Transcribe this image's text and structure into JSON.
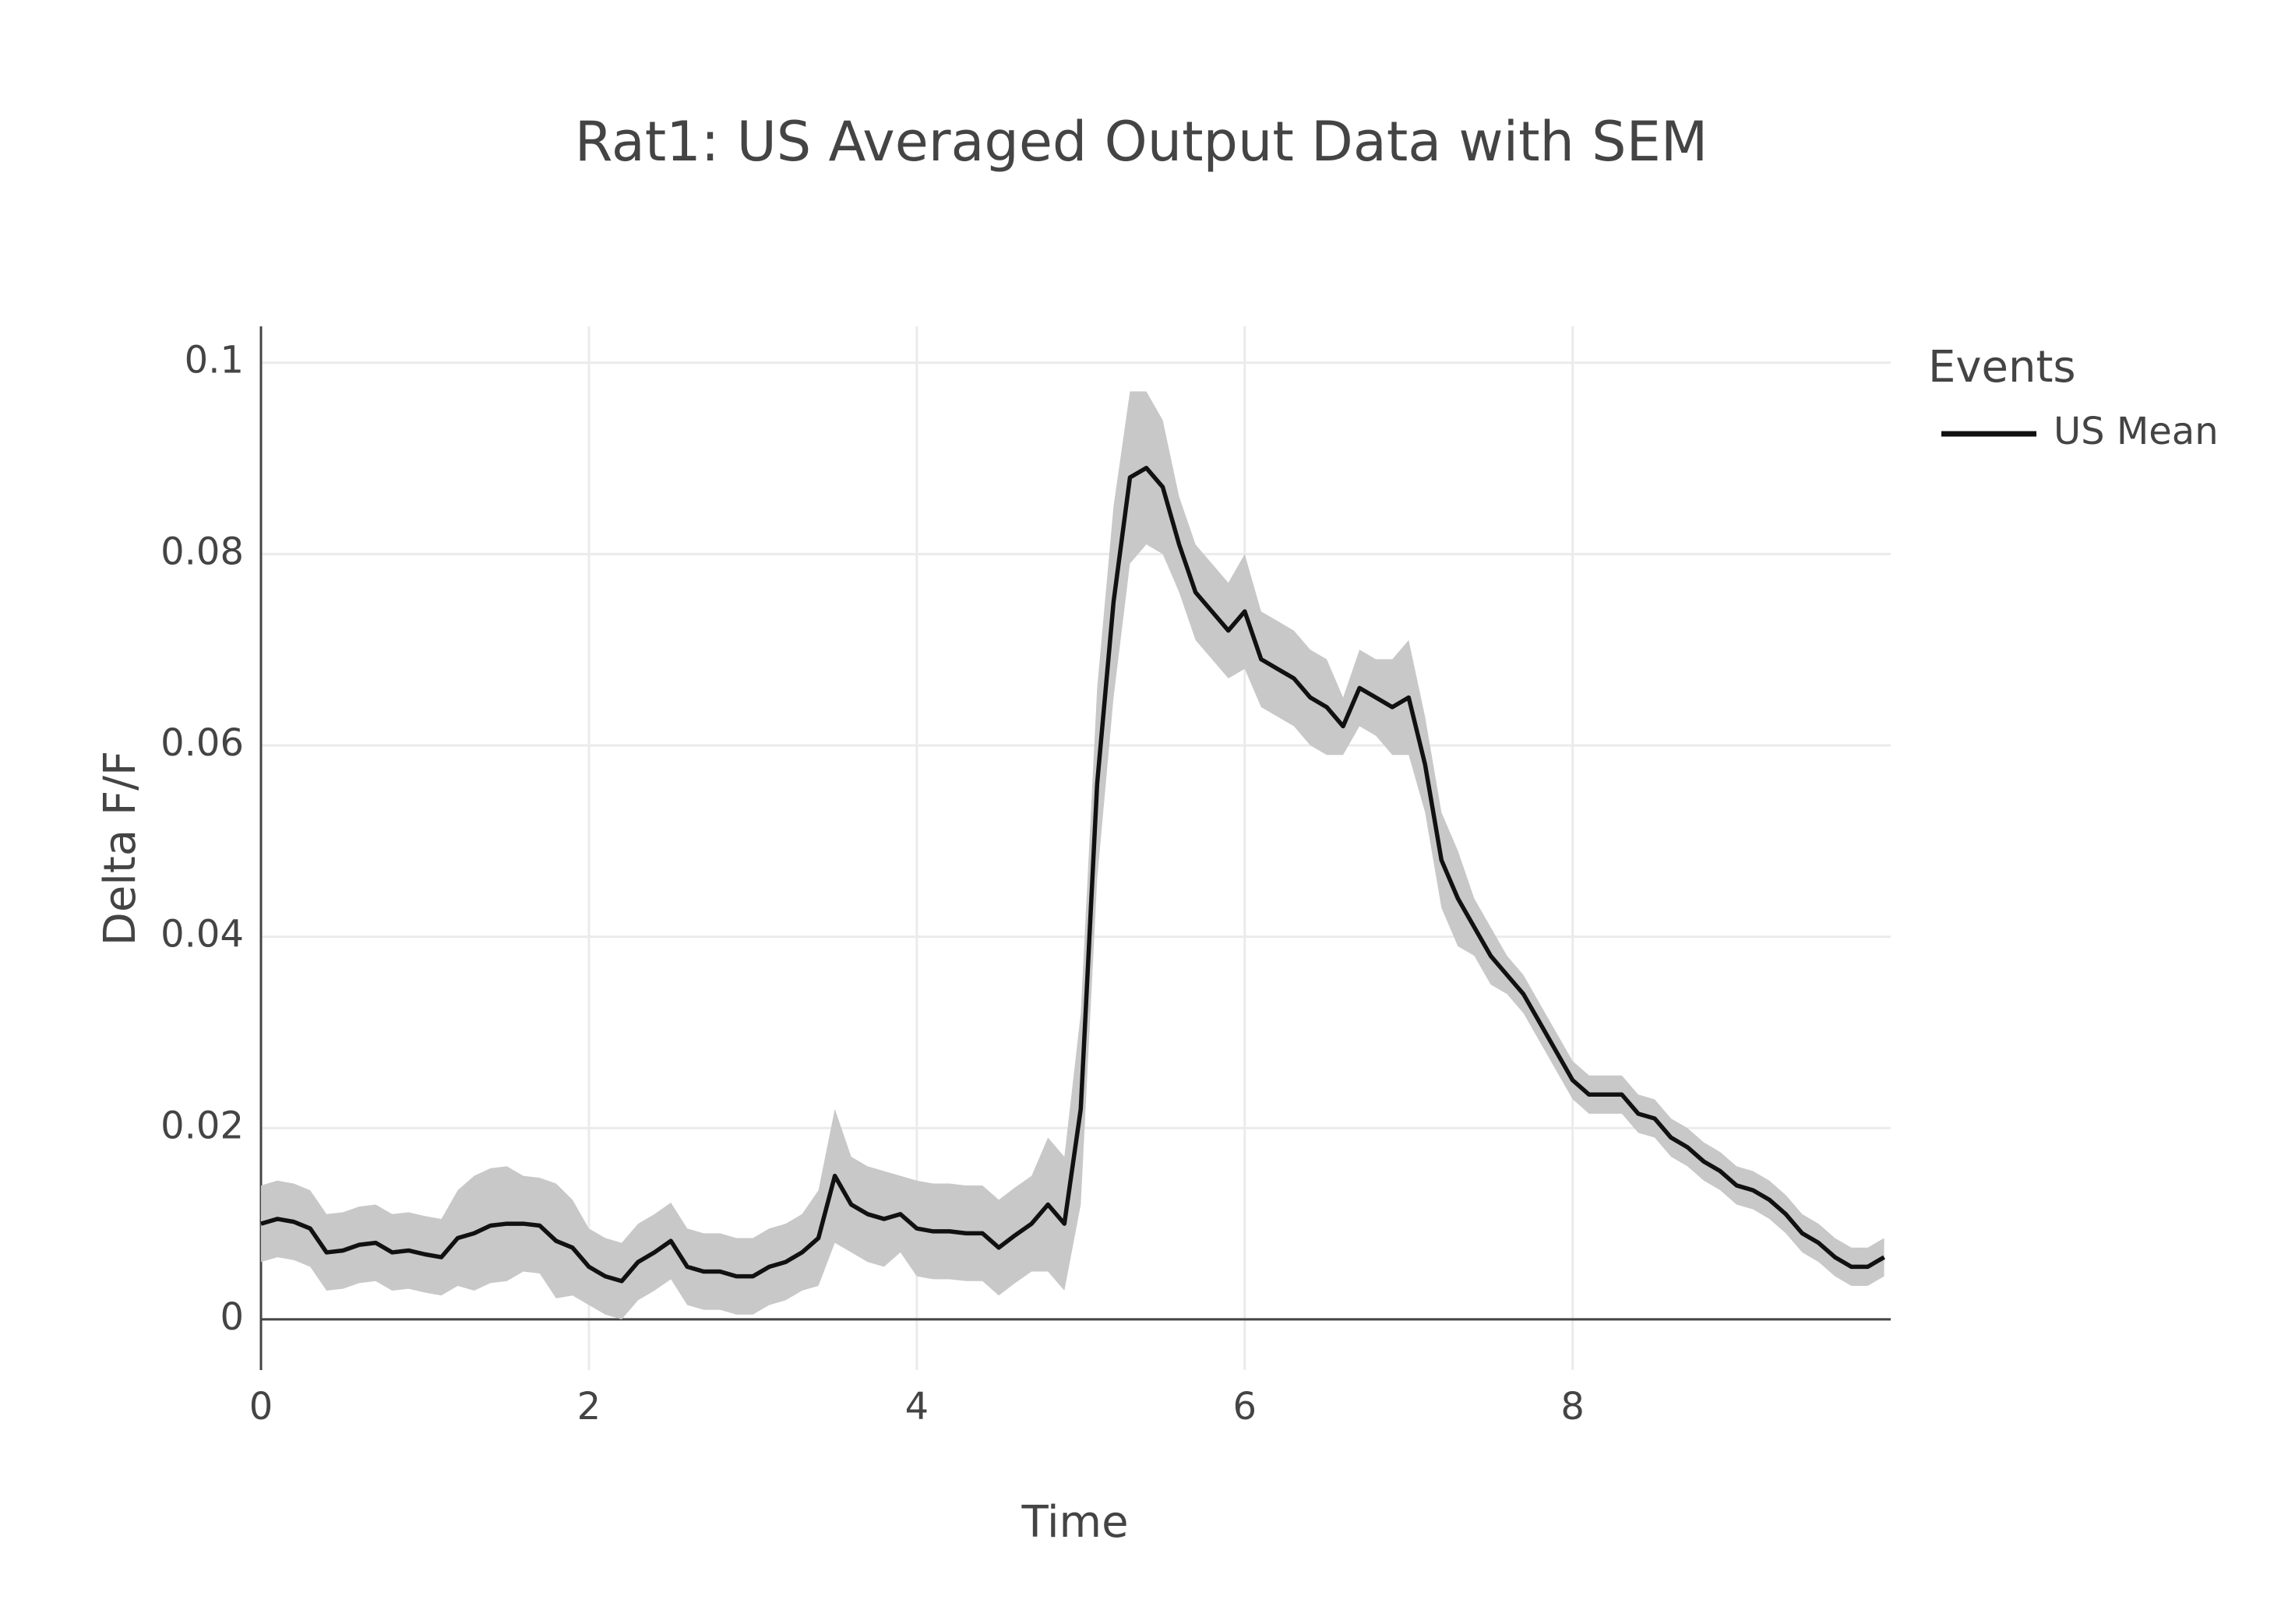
{
  "chart_data": {
    "type": "line",
    "title": "Rat1: US Averaged Output Data with SEM",
    "x_label": "Time",
    "y_label": "Delta F/F",
    "legend_title": "Events",
    "grid": true,
    "x": [
      0,
      0.1,
      0.2,
      0.3,
      0.4,
      0.5,
      0.6,
      0.7,
      0.8,
      0.9,
      1,
      1.1,
      1.2,
      1.3,
      1.4,
      1.5,
      1.6,
      1.7,
      1.8,
      1.9,
      2,
      2.1,
      2.2,
      2.3,
      2.4,
      2.5,
      2.6,
      2.7,
      2.8,
      2.9,
      3,
      3.1,
      3.2,
      3.3,
      3.4,
      3.5,
      3.6,
      3.7,
      3.8,
      3.9,
      4,
      4.1,
      4.2,
      4.3,
      4.4,
      4.5,
      4.6,
      4.7,
      4.8,
      4.9,
      5,
      5.1,
      5.2,
      5.3,
      5.4,
      5.5,
      5.6,
      5.7,
      5.8,
      5.9,
      6,
      6.1,
      6.2,
      6.3,
      6.4,
      6.5,
      6.6,
      6.7,
      6.8,
      6.9,
      7,
      7.1,
      7.2,
      7.3,
      7.4,
      7.5,
      7.6,
      7.7,
      7.8,
      7.9,
      8,
      8.1,
      8.2,
      8.3,
      8.4,
      8.5,
      8.6,
      8.7,
      8.8,
      8.9,
      9,
      9.1,
      9.2,
      9.3,
      9.4,
      9.5,
      9.6,
      9.7,
      9.8,
      9.9
    ],
    "series": [
      {
        "name": "US Mean",
        "color": "#111111",
        "band_color": "#c8c8c8",
        "values": [
          0.01,
          0.0105,
          0.0102,
          0.0095,
          0.007,
          0.0072,
          0.0078,
          0.008,
          0.007,
          0.0072,
          0.0068,
          0.0065,
          0.0085,
          0.009,
          0.0098,
          0.01,
          0.01,
          0.0098,
          0.0082,
          0.0075,
          0.0055,
          0.0045,
          0.004,
          0.006,
          0.007,
          0.0082,
          0.0055,
          0.005,
          0.005,
          0.0045,
          0.0045,
          0.0055,
          0.006,
          0.007,
          0.0085,
          0.015,
          0.012,
          0.011,
          0.0105,
          0.011,
          0.0095,
          0.0092,
          0.0092,
          0.009,
          0.009,
          0.0075,
          0.0088,
          0.01,
          0.012,
          0.01,
          0.022,
          0.056,
          0.075,
          0.088,
          0.089,
          0.087,
          0.081,
          0.076,
          0.074,
          0.072,
          0.074,
          0.069,
          0.068,
          0.067,
          0.065,
          0.064,
          0.062,
          0.066,
          0.065,
          0.064,
          0.065,
          0.058,
          0.048,
          0.044,
          0.041,
          0.038,
          0.036,
          0.034,
          0.031,
          0.028,
          0.025,
          0.0235,
          0.0235,
          0.0235,
          0.0215,
          0.021,
          0.019,
          0.018,
          0.0165,
          0.0155,
          0.014,
          0.0135,
          0.0125,
          0.011,
          0.009,
          0.008,
          0.0065,
          0.0055,
          0.0055,
          0.0065
        ],
        "error": [
          0.004,
          0.004,
          0.004,
          0.004,
          0.004,
          0.004,
          0.004,
          0.004,
          0.004,
          0.004,
          0.004,
          0.004,
          0.005,
          0.006,
          0.006,
          0.006,
          0.005,
          0.005,
          0.006,
          0.005,
          0.004,
          0.004,
          0.004,
          0.004,
          0.004,
          0.004,
          0.004,
          0.004,
          0.004,
          0.004,
          0.004,
          0.004,
          0.004,
          0.004,
          0.005,
          0.007,
          0.005,
          0.005,
          0.005,
          0.004,
          0.005,
          0.005,
          0.005,
          0.005,
          0.005,
          0.005,
          0.005,
          0.005,
          0.007,
          0.007,
          0.01,
          0.01,
          0.01,
          0.009,
          0.008,
          0.007,
          0.005,
          0.005,
          0.005,
          0.005,
          0.006,
          0.005,
          0.005,
          0.005,
          0.005,
          0.005,
          0.003,
          0.004,
          0.004,
          0.005,
          0.006,
          0.005,
          0.005,
          0.005,
          0.003,
          0.003,
          0.002,
          0.002,
          0.002,
          0.002,
          0.002,
          0.002,
          0.002,
          0.002,
          0.002,
          0.002,
          0.002,
          0.002,
          0.002,
          0.002,
          0.002,
          0.002,
          0.002,
          0.002,
          0.002,
          0.002,
          0.002,
          0.002,
          0.002,
          0.002
        ]
      }
    ],
    "xlim": [
      0,
      9.94
    ],
    "ylim": [
      -0.0053,
      0.1038
    ],
    "xticks": [
      0,
      2,
      4,
      6,
      8
    ],
    "yticks": [
      0,
      0.02,
      0.04,
      0.06,
      0.08,
      0.1
    ]
  }
}
